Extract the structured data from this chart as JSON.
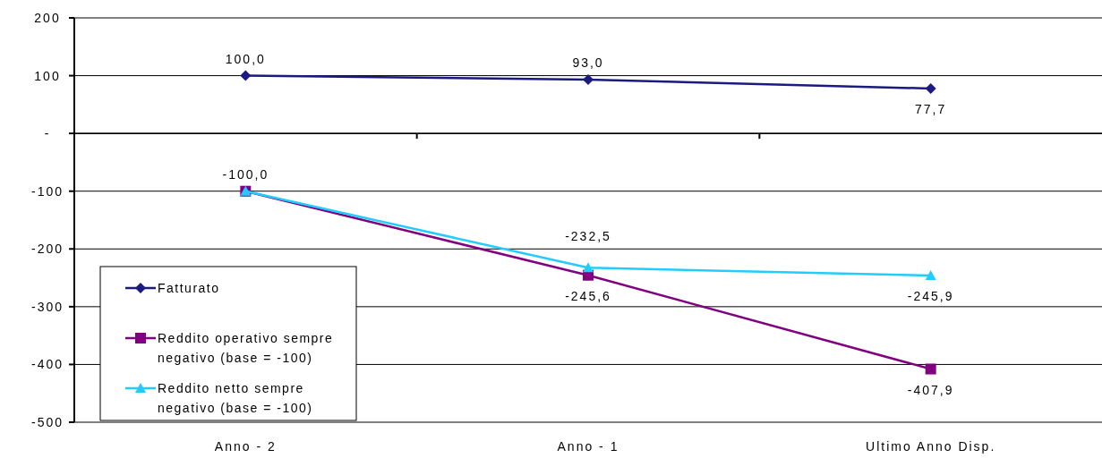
{
  "chart_data": {
    "type": "line",
    "categories": [
      "Anno - 2",
      "Anno - 1",
      "Ultimo Anno Disp."
    ],
    "series": [
      {
        "name": "Fatturato",
        "color": "#1a1a80",
        "marker": "diamond",
        "values": [
          100,
          93,
          77.7
        ],
        "value_labels": [
          "100,0",
          "93,0",
          "77,7"
        ]
      },
      {
        "name": "Reddito operativo sempre negativo (base = -100)",
        "color": "#800080",
        "marker": "square",
        "values": [
          -100,
          -245.6,
          -407.9
        ],
        "value_labels": [
          "-100,0",
          "-245,6",
          "-407,9"
        ]
      },
      {
        "name": "Reddito netto sempre negativo (base = -100)",
        "color": "#22ccff",
        "marker": "triangle",
        "values": [
          -100,
          -232.5,
          -245.9
        ],
        "value_labels": [
          null,
          "-232,5",
          "-245,9"
        ]
      }
    ],
    "ylim": [
      -500,
      200
    ],
    "yticks": [
      -500,
      -400,
      -300,
      -200,
      -100,
      {
        "value": 0,
        "label": "-"
      },
      100,
      200
    ],
    "grid": "y",
    "legend": "bottom left"
  }
}
